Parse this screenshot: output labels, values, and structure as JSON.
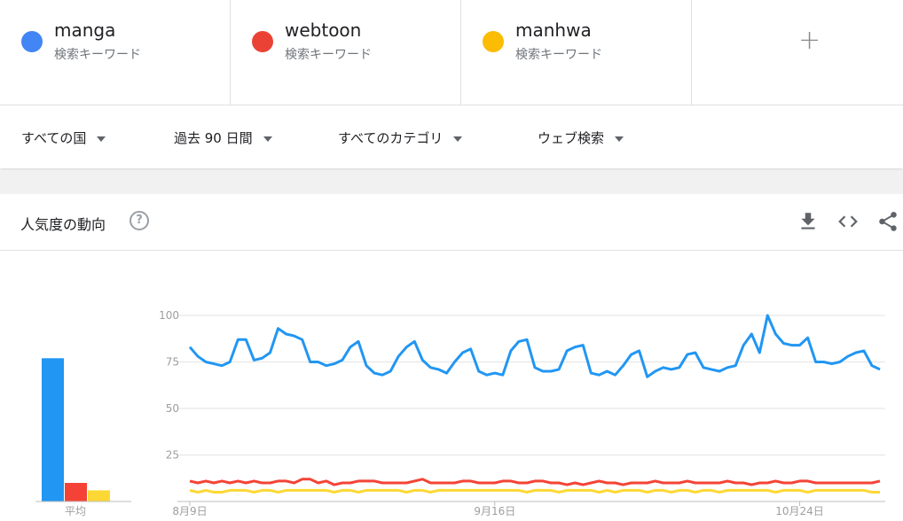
{
  "terms": [
    {
      "name": "manga",
      "sub": "検索キーワード",
      "color": "#4285f4"
    },
    {
      "name": "webtoon",
      "sub": "検索キーワード",
      "color": "#ea4335"
    },
    {
      "name": "manhwa",
      "sub": "検索キーワード",
      "color": "#fbbc04"
    }
  ],
  "add_term_label": "+",
  "filters": {
    "region": "すべての国",
    "period": "過去 90 日間",
    "category": "すべてのカテゴリ",
    "search_type": "ウェブ検索"
  },
  "card": {
    "title": "人気度の動向",
    "help_label": "?"
  },
  "chart_data": {
    "type": "line",
    "avg_label": "平均",
    "averages": [
      {
        "name": "manga",
        "value": 77,
        "color": "#2196f3"
      },
      {
        "name": "webtoon",
        "value": 10,
        "color": "#f44336"
      },
      {
        "name": "manhwa",
        "value": 6,
        "color": "#fdd835"
      }
    ],
    "y_ticks": [
      25,
      50,
      75,
      100
    ],
    "ylim": [
      0,
      100
    ],
    "x_ticks": [
      {
        "label": "8月9日",
        "index": 0
      },
      {
        "label": "9月16日",
        "index": 38
      },
      {
        "label": "10月24日",
        "index": 76
      }
    ],
    "series": [
      {
        "name": "manga",
        "color": "#2196f3",
        "values": [
          83,
          78,
          75,
          74,
          73,
          75,
          87,
          87,
          76,
          77,
          80,
          93,
          90,
          89,
          87,
          75,
          75,
          73,
          74,
          76,
          83,
          86,
          73,
          69,
          68,
          70,
          78,
          83,
          86,
          76,
          72,
          71,
          69,
          75,
          80,
          82,
          70,
          68,
          69,
          68,
          81,
          86,
          87,
          72,
          70,
          70,
          71,
          81,
          83,
          84,
          69,
          68,
          70,
          68,
          73,
          79,
          81,
          67,
          70,
          72,
          71,
          72,
          79,
          80,
          72,
          71,
          70,
          72,
          73,
          84,
          90,
          80,
          100,
          90,
          85,
          84,
          84,
          88,
          75,
          75,
          74,
          75,
          78,
          80,
          81,
          73,
          71
        ]
      },
      {
        "name": "webtoon",
        "color": "#f44336",
        "values": [
          11,
          10,
          11,
          10,
          11,
          10,
          11,
          10,
          11,
          10,
          10,
          11,
          11,
          10,
          12,
          12,
          10,
          11,
          9,
          10,
          10,
          11,
          11,
          11,
          10,
          10,
          10,
          10,
          11,
          12,
          10,
          10,
          10,
          10,
          11,
          11,
          10,
          10,
          10,
          11,
          11,
          10,
          10,
          11,
          11,
          10,
          10,
          9,
          10,
          9,
          10,
          11,
          10,
          10,
          9,
          10,
          10,
          10,
          11,
          10,
          10,
          10,
          11,
          10,
          10,
          10,
          10,
          11,
          10,
          10,
          9,
          10,
          10,
          11,
          10,
          10,
          11,
          11,
          10,
          10,
          10,
          10,
          10,
          10,
          10,
          10,
          11
        ]
      },
      {
        "name": "manhwa",
        "color": "#fdd835",
        "values": [
          6,
          5,
          6,
          5,
          5,
          6,
          6,
          6,
          5,
          6,
          6,
          5,
          6,
          6,
          6,
          6,
          6,
          6,
          5,
          6,
          6,
          5,
          6,
          6,
          6,
          6,
          6,
          5,
          6,
          6,
          5,
          6,
          6,
          6,
          6,
          6,
          6,
          6,
          6,
          6,
          6,
          6,
          5,
          6,
          6,
          6,
          5,
          6,
          6,
          6,
          6,
          5,
          6,
          5,
          6,
          6,
          6,
          5,
          6,
          6,
          5,
          6,
          6,
          5,
          6,
          6,
          5,
          6,
          6,
          6,
          6,
          6,
          6,
          5,
          6,
          6,
          6,
          5,
          6,
          6,
          6,
          6,
          6,
          6,
          6,
          5,
          5
        ]
      }
    ]
  }
}
